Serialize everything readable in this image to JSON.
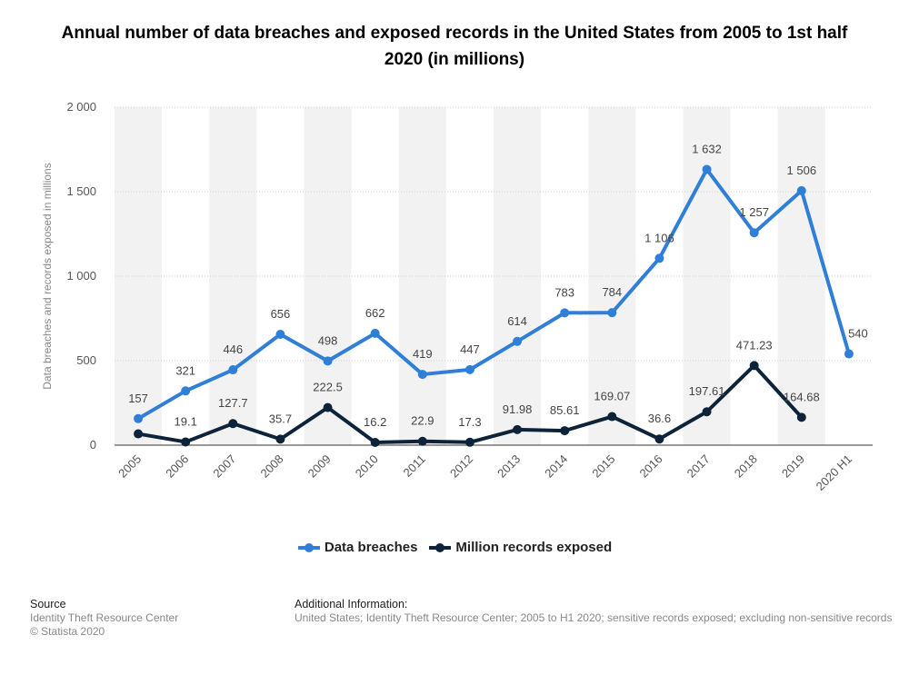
{
  "chart_data": {
    "type": "line",
    "title": "Annual number of data breaches and exposed records in the United States from 2005 to 1st half 2020 (in millions)",
    "y_label": "Data breaches and records exposed in millions",
    "categories": [
      "2005",
      "2006",
      "2007",
      "2008",
      "2009",
      "2010",
      "2011",
      "2012",
      "2013",
      "2014",
      "2015",
      "2016",
      "2017",
      "2018",
      "2019",
      "2020 H1"
    ],
    "series": [
      {
        "name": "Data breaches",
        "color": "#2f7ed8",
        "values": [
          157,
          321,
          446,
          656,
          498,
          662,
          419,
          447,
          614,
          783,
          784,
          1106,
          1632,
          1257,
          1506,
          540
        ],
        "value_labels": [
          "157",
          "321",
          "446",
          "656",
          "498",
          "662",
          "419",
          "447",
          "614",
          "783",
          "784",
          "1 106",
          "1 632",
          "1 257",
          "1 506",
          "540"
        ]
      },
      {
        "name": "Million records exposed",
        "color": "#0d233a",
        "values": [
          66.9,
          19.1,
          127.7,
          35.7,
          222.5,
          16.2,
          22.9,
          17.3,
          91.98,
          85.61,
          169.07,
          36.6,
          197.61,
          471.23,
          164.68,
          null
        ],
        "value_labels": [
          null,
          "19.1",
          "127.7",
          "35.7",
          "222.5",
          "16.2",
          "22.9",
          "17.3",
          "91.98",
          "85.61",
          "169.07",
          "36.6",
          "197.61",
          "471.23",
          "164.68",
          null
        ]
      }
    ],
    "ylim": [
      0,
      2000
    ],
    "yticks": [
      0,
      500,
      {
        "value": 1000,
        "label": "1 000"
      },
      {
        "value": 1500,
        "label": "1 500"
      },
      {
        "value": 2000,
        "label": "2 000"
      }
    ],
    "grid": true,
    "legend": "bottom"
  },
  "source": {
    "heading": "Source",
    "lines": [
      "Identity Theft Resource Center",
      "© Statista 2020"
    ]
  },
  "additional_info": {
    "heading": "Additional Information:",
    "text": "United States; Identity Theft Resource Center; 2005 to H1 2020; sensitive records exposed; excluding non-sensitive records"
  }
}
